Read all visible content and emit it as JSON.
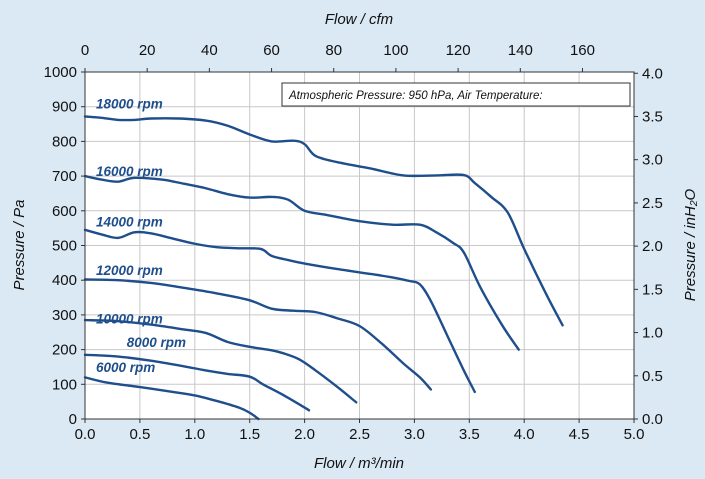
{
  "chart_data": {
    "type": "line",
    "title": "",
    "xlabel_bottom": "Flow / m³/min",
    "xlabel_top": "Flow / cfm",
    "ylabel_left": "Pressure / Pa",
    "ylabel_right": "Pressure / inH₂O",
    "xlim": [
      0,
      5.0
    ],
    "ylim": [
      0,
      1000
    ],
    "x_ticks": [
      0.0,
      0.5,
      1.0,
      1.5,
      2.0,
      2.5,
      3.0,
      3.5,
      4.0,
      4.5,
      5.0
    ],
    "x_tick_labels": [
      "0.0",
      "0.5",
      "1.0",
      "1.5",
      "2.0",
      "2.5",
      "3.0",
      "3.5",
      "4.0",
      "4.5",
      "5.0"
    ],
    "y_ticks": [
      0,
      100,
      200,
      300,
      400,
      500,
      600,
      700,
      800,
      900,
      1000
    ],
    "y_tick_labels": [
      "0",
      "100",
      "200",
      "300",
      "400",
      "500",
      "600",
      "700",
      "800",
      "900",
      "1000"
    ],
    "x2_lim": [
      0,
      176.57
    ],
    "x2_ticks": [
      0,
      20,
      40,
      60,
      80,
      100,
      120,
      140,
      160
    ],
    "x2_tick_labels": [
      "0",
      "20",
      "40",
      "60",
      "80",
      "100",
      "120",
      "140",
      "160"
    ],
    "y2_lim": [
      0,
      4.0146
    ],
    "y2_ticks": [
      0.0,
      0.5,
      1.0,
      1.5,
      2.0,
      2.5,
      3.0,
      3.5,
      4.0
    ],
    "y2_tick_labels": [
      "0.0",
      "0.5",
      "1.0",
      "1.5",
      "2.0",
      "2.5",
      "3.0",
      "3.5",
      "4.0"
    ],
    "grid": true,
    "line_color": "#1f4e8c",
    "annotation": "Atmospheric Pressure: 950 hPa, Air Temperature:",
    "series": [
      {
        "name": "6000 rpm",
        "label_at": [
          0.1,
          135
        ],
        "points": [
          [
            0,
            120
          ],
          [
            0.2,
            105
          ],
          [
            0.5,
            92
          ],
          [
            0.8,
            78
          ],
          [
            1.0,
            68
          ],
          [
            1.2,
            52
          ],
          [
            1.4,
            33
          ],
          [
            1.5,
            18
          ],
          [
            1.58,
            0
          ]
        ]
      },
      {
        "name": "8000 rpm",
        "label_at": [
          0.38,
          208
        ],
        "points": [
          [
            0,
            185
          ],
          [
            0.3,
            180
          ],
          [
            0.6,
            168
          ],
          [
            0.9,
            152
          ],
          [
            1.1,
            140
          ],
          [
            1.3,
            130
          ],
          [
            1.5,
            122
          ],
          [
            1.62,
            100
          ],
          [
            1.8,
            70
          ],
          [
            2.0,
            33
          ],
          [
            2.04,
            25
          ]
        ]
      },
      {
        "name": "10000 rpm",
        "label_at": [
          0.1,
          275
        ],
        "points": [
          [
            0,
            285
          ],
          [
            0.3,
            282
          ],
          [
            0.6,
            272
          ],
          [
            0.9,
            258
          ],
          [
            1.1,
            248
          ],
          [
            1.3,
            222
          ],
          [
            1.5,
            208
          ],
          [
            1.7,
            198
          ],
          [
            1.8,
            190
          ],
          [
            1.95,
            172
          ],
          [
            2.1,
            140
          ],
          [
            2.3,
            92
          ],
          [
            2.47,
            48
          ]
        ]
      },
      {
        "name": "12000 rpm",
        "label_at": [
          0.1,
          415
        ],
        "points": [
          [
            0,
            402
          ],
          [
            0.3,
            400
          ],
          [
            0.6,
            392
          ],
          [
            0.9,
            378
          ],
          [
            1.2,
            362
          ],
          [
            1.5,
            342
          ],
          [
            1.7,
            318
          ],
          [
            1.9,
            312
          ],
          [
            2.1,
            308
          ],
          [
            2.3,
            290
          ],
          [
            2.5,
            268
          ],
          [
            2.7,
            218
          ],
          [
            2.9,
            160
          ],
          [
            3.05,
            120
          ],
          [
            3.15,
            85
          ]
        ]
      },
      {
        "name": "14000 rpm",
        "label_at": [
          0.1,
          555
        ],
        "points": [
          [
            0,
            545
          ],
          [
            0.15,
            532
          ],
          [
            0.3,
            522
          ],
          [
            0.45,
            538
          ],
          [
            0.6,
            535
          ],
          [
            0.8,
            520
          ],
          [
            1.0,
            505
          ],
          [
            1.2,
            495
          ],
          [
            1.4,
            492
          ],
          [
            1.6,
            490
          ],
          [
            1.7,
            470
          ],
          [
            1.85,
            458
          ],
          [
            2.0,
            448
          ],
          [
            2.3,
            432
          ],
          [
            2.6,
            418
          ],
          [
            2.8,
            408
          ],
          [
            2.95,
            398
          ],
          [
            3.05,
            388
          ],
          [
            3.15,
            340
          ],
          [
            3.3,
            240
          ],
          [
            3.45,
            140
          ],
          [
            3.55,
            78
          ]
        ]
      },
      {
        "name": "16000 rpm",
        "label_at": [
          0.1,
          700
        ],
        "points": [
          [
            0,
            700
          ],
          [
            0.15,
            690
          ],
          [
            0.3,
            684
          ],
          [
            0.45,
            695
          ],
          [
            0.7,
            690
          ],
          [
            0.9,
            678
          ],
          [
            1.1,
            665
          ],
          [
            1.3,
            648
          ],
          [
            1.5,
            638
          ],
          [
            1.7,
            640
          ],
          [
            1.85,
            632
          ],
          [
            2.0,
            600
          ],
          [
            2.2,
            588
          ],
          [
            2.5,
            570
          ],
          [
            2.8,
            560
          ],
          [
            3.05,
            560
          ],
          [
            3.2,
            538
          ],
          [
            3.35,
            508
          ],
          [
            3.45,
            480
          ],
          [
            3.6,
            380
          ],
          [
            3.8,
            270
          ],
          [
            3.95,
            200
          ]
        ]
      },
      {
        "name": "18000 rpm",
        "label_at": [
          0.1,
          895
        ],
        "points": [
          [
            0,
            872
          ],
          [
            0.15,
            868
          ],
          [
            0.3,
            862
          ],
          [
            0.45,
            862
          ],
          [
            0.6,
            866
          ],
          [
            0.85,
            866
          ],
          [
            1.1,
            860
          ],
          [
            1.3,
            845
          ],
          [
            1.5,
            820
          ],
          [
            1.7,
            800
          ],
          [
            1.9,
            802
          ],
          [
            2.0,
            792
          ],
          [
            2.1,
            758
          ],
          [
            2.3,
            740
          ],
          [
            2.6,
            722
          ],
          [
            2.9,
            702
          ],
          [
            3.2,
            702
          ],
          [
            3.45,
            703
          ],
          [
            3.55,
            680
          ],
          [
            3.7,
            640
          ],
          [
            3.85,
            595
          ],
          [
            4.0,
            490
          ],
          [
            4.2,
            360
          ],
          [
            4.35,
            270
          ]
        ]
      }
    ]
  }
}
